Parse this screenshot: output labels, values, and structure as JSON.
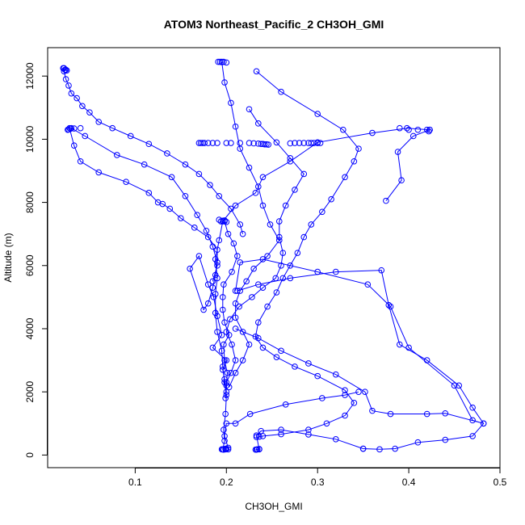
{
  "chart_data": {
    "type": "line",
    "title": "ATOM3 Northeast_Pacific_2 CH3OH_GMI",
    "xlabel": "CH3OH_GMI",
    "ylabel": "Altitude (m)",
    "xlim": [
      0.0,
      0.5
    ],
    "ylim": [
      0,
      12500
    ],
    "x_ticks": [
      0.1,
      0.2,
      0.3,
      0.4,
      0.5
    ],
    "x_tick_labels": [
      "0.1",
      "0.2",
      "0.3",
      "0.4",
      "0.5"
    ],
    "y_ticks": [
      0,
      2000,
      4000,
      6000,
      8000,
      10000,
      12000
    ],
    "y_tick_labels": [
      "0",
      "2000",
      "4000",
      "6000",
      "8000",
      "10000",
      "12000"
    ],
    "grid": false,
    "legend": "none",
    "series_color": "#0000ff",
    "marker": "open-circle",
    "series": [
      {
        "points": [
          [
            0.196,
            180
          ],
          [
            0.198,
            450
          ],
          [
            0.197,
            800
          ],
          [
            0.199,
            1300
          ],
          [
            0.2,
            1900
          ],
          [
            0.198,
            2300
          ],
          [
            0.196,
            2800
          ],
          [
            0.195,
            3300
          ],
          [
            0.19,
            3900
          ],
          [
            0.188,
            4500
          ],
          [
            0.188,
            5100
          ],
          [
            0.19,
            5600
          ],
          [
            0.188,
            6200
          ],
          [
            0.192,
            6800
          ],
          [
            0.196,
            7400
          ],
          [
            0.21,
            7900
          ],
          [
            0.232,
            8300
          ],
          [
            0.24,
            8800
          ],
          [
            0.27,
            9300
          ],
          [
            0.3,
            9900
          ],
          [
            0.36,
            10200
          ],
          [
            0.398,
            10350
          ],
          [
            0.423,
            10300
          ]
        ]
      },
      {
        "points": [
          [
            0.423,
            10300
          ],
          [
            0.405,
            10100
          ],
          [
            0.388,
            9600
          ],
          [
            0.392,
            8700
          ],
          [
            0.375,
            8050
          ]
        ]
      },
      {
        "points": [
          [
            0.199,
            1800
          ],
          [
            0.2,
            2200
          ],
          [
            0.201,
            2600
          ],
          [
            0.198,
            3000
          ],
          [
            0.197,
            3500
          ],
          [
            0.203,
            3800
          ],
          [
            0.198,
            4200
          ],
          [
            0.196,
            4600
          ],
          [
            0.196,
            5000
          ],
          [
            0.197,
            5400
          ],
          [
            0.206,
            5800
          ],
          [
            0.212,
            6300
          ],
          [
            0.208,
            6700
          ],
          [
            0.202,
            7000
          ],
          [
            0.198,
            7400
          ]
        ]
      },
      {
        "points": [
          [
            0.021,
            12250
          ],
          [
            0.022,
            12150
          ],
          [
            0.024,
            11900
          ],
          [
            0.027,
            11700
          ],
          [
            0.03,
            11450
          ],
          [
            0.036,
            11300
          ],
          [
            0.042,
            11050
          ],
          [
            0.05,
            10850
          ],
          [
            0.06,
            10550
          ],
          [
            0.075,
            10350
          ],
          [
            0.095,
            10100
          ],
          [
            0.115,
            9850
          ],
          [
            0.135,
            9550
          ],
          [
            0.155,
            9200
          ],
          [
            0.17,
            8900
          ],
          [
            0.182,
            8550
          ],
          [
            0.192,
            8200
          ],
          [
            0.205,
            7800
          ],
          [
            0.215,
            7300
          ],
          [
            0.218,
            7000
          ]
        ]
      },
      {
        "points": [
          [
            0.028,
            10350
          ],
          [
            0.033,
            9800
          ],
          [
            0.04,
            9300
          ],
          [
            0.06,
            8950
          ],
          [
            0.09,
            8650
          ],
          [
            0.115,
            8300
          ],
          [
            0.125,
            8000
          ],
          [
            0.13,
            7950
          ],
          [
            0.138,
            7800
          ],
          [
            0.15,
            7500
          ],
          [
            0.165,
            7200
          ],
          [
            0.18,
            6900
          ],
          [
            0.19,
            6500
          ],
          [
            0.19,
            6000
          ],
          [
            0.185,
            5500
          ]
        ]
      },
      {
        "points": [
          [
            0.03,
            10350
          ],
          [
            0.045,
            10100
          ],
          [
            0.08,
            9500
          ],
          [
            0.11,
            9200
          ],
          [
            0.14,
            8800
          ],
          [
            0.155,
            8200
          ],
          [
            0.168,
            7600
          ],
          [
            0.178,
            7100
          ],
          [
            0.185,
            6600
          ],
          [
            0.19,
            6100
          ],
          [
            0.188,
            5700
          ],
          [
            0.185,
            5300
          ],
          [
            0.18,
            4800
          ],
          [
            0.175,
            4600
          ],
          [
            0.16,
            5900
          ],
          [
            0.17,
            6300
          ],
          [
            0.18,
            5400
          ],
          [
            0.186,
            5000
          ],
          [
            0.19,
            4400
          ],
          [
            0.195,
            3800
          ],
          [
            0.185,
            3400
          ],
          [
            0.2,
            3000
          ],
          [
            0.196,
            2700
          ],
          [
            0.198,
            2400
          ],
          [
            0.2,
            2000
          ]
        ]
      },
      {
        "points": [
          [
            0.195,
            12450
          ],
          [
            0.198,
            11800
          ],
          [
            0.205,
            11150
          ],
          [
            0.21,
            10400
          ],
          [
            0.215,
            9700
          ],
          [
            0.225,
            9100
          ],
          [
            0.235,
            8500
          ],
          [
            0.24,
            7900
          ],
          [
            0.248,
            7300
          ],
          [
            0.258,
            6800
          ],
          [
            0.245,
            6300
          ],
          [
            0.23,
            5900
          ],
          [
            0.222,
            5500
          ],
          [
            0.215,
            5200
          ],
          [
            0.21,
            4800
          ],
          [
            0.21,
            4350
          ],
          [
            0.218,
            3900
          ],
          [
            0.225,
            3500
          ],
          [
            0.218,
            3000
          ],
          [
            0.21,
            2600
          ],
          [
            0.203,
            2150
          ]
        ]
      },
      {
        "points": [
          [
            0.233,
            12150
          ],
          [
            0.26,
            11500
          ],
          [
            0.3,
            10800
          ],
          [
            0.328,
            10300
          ],
          [
            0.345,
            9700
          ],
          [
            0.34,
            9300
          ],
          [
            0.33,
            8800
          ],
          [
            0.315,
            8100
          ],
          [
            0.305,
            7700
          ],
          [
            0.293,
            7300
          ],
          [
            0.285,
            6900
          ],
          [
            0.278,
            6400
          ],
          [
            0.27,
            6000
          ],
          [
            0.262,
            5600
          ],
          [
            0.255,
            5150
          ],
          [
            0.245,
            4700
          ],
          [
            0.235,
            4200
          ],
          [
            0.232,
            3750
          ],
          [
            0.24,
            3400
          ],
          [
            0.255,
            3100
          ],
          [
            0.275,
            2800
          ],
          [
            0.3,
            2500
          ],
          [
            0.33,
            2050
          ],
          [
            0.34,
            1650
          ],
          [
            0.33,
            1250
          ],
          [
            0.31,
            1000
          ],
          [
            0.29,
            800
          ],
          [
            0.26,
            660
          ],
          [
            0.24,
            600
          ],
          [
            0.236,
            580
          ],
          [
            0.233,
            570
          ]
        ]
      },
      {
        "points": [
          [
            0.225,
            10950
          ],
          [
            0.235,
            10500
          ],
          [
            0.255,
            9900
          ],
          [
            0.27,
            9400
          ],
          [
            0.285,
            8900
          ],
          [
            0.275,
            8400
          ],
          [
            0.265,
            7900
          ],
          [
            0.258,
            7400
          ],
          [
            0.258,
            6900
          ],
          [
            0.262,
            6400
          ],
          [
            0.26,
            6000
          ],
          [
            0.254,
            5600
          ],
          [
            0.24,
            5300
          ],
          [
            0.228,
            5000
          ],
          [
            0.214,
            4700
          ],
          [
            0.204,
            4300
          ],
          [
            0.2,
            3900
          ],
          [
            0.206,
            3500
          ],
          [
            0.21,
            3000
          ],
          [
            0.205,
            2600
          ],
          [
            0.2,
            2300
          ]
        ]
      },
      {
        "points": [
          [
            0.21,
            4000
          ],
          [
            0.235,
            3700
          ],
          [
            0.26,
            3300
          ],
          [
            0.29,
            2900
          ],
          [
            0.32,
            2550
          ],
          [
            0.352,
            2000
          ],
          [
            0.36,
            1400
          ],
          [
            0.38,
            1300
          ],
          [
            0.42,
            1300
          ],
          [
            0.44,
            1320
          ],
          [
            0.482,
            1000
          ],
          [
            0.47,
            1100
          ],
          [
            0.45,
            2200
          ],
          [
            0.4,
            3400
          ],
          [
            0.38,
            4700
          ],
          [
            0.355,
            5400
          ],
          [
            0.3,
            5800
          ],
          [
            0.24,
            6200
          ],
          [
            0.215,
            6100
          ],
          [
            0.21,
            5200
          ]
        ]
      },
      {
        "points": [
          [
            0.212,
            5200
          ],
          [
            0.235,
            5400
          ],
          [
            0.27,
            5600
          ],
          [
            0.32,
            5800
          ],
          [
            0.37,
            5850
          ],
          [
            0.378,
            4750
          ],
          [
            0.39,
            3500
          ],
          [
            0.42,
            3000
          ],
          [
            0.455,
            2200
          ],
          [
            0.47,
            1500
          ],
          [
            0.482,
            1000
          ],
          [
            0.47,
            600
          ],
          [
            0.44,
            480
          ],
          [
            0.41,
            400
          ],
          [
            0.385,
            200
          ],
          [
            0.368,
            180
          ],
          [
            0.35,
            200
          ]
        ]
      },
      {
        "points": [
          [
            0.35,
            200
          ],
          [
            0.32,
            500
          ],
          [
            0.29,
            650
          ],
          [
            0.26,
            800
          ],
          [
            0.238,
            760
          ],
          [
            0.233,
            620
          ],
          [
            0.236,
            180
          ],
          [
            0.232,
            170
          ]
        ]
      },
      {
        "points": [
          [
            0.199,
            200
          ],
          [
            0.202,
            230
          ],
          [
            0.198,
            600
          ],
          [
            0.2,
            1000
          ],
          [
            0.21,
            1000
          ],
          [
            0.226,
            1300
          ],
          [
            0.265,
            1600
          ],
          [
            0.305,
            1800
          ],
          [
            0.33,
            1900
          ],
          [
            0.345,
            2000
          ]
        ]
      }
    ],
    "clusters": [
      {
        "points": [
          [
            0.17,
            9880
          ],
          [
            0.172,
            9880
          ],
          [
            0.174,
            9880
          ],
          [
            0.176,
            9880
          ],
          [
            0.18,
            9880
          ],
          [
            0.185,
            9880
          ],
          [
            0.19,
            9880
          ],
          [
            0.2,
            9880
          ],
          [
            0.205,
            9880
          ],
          [
            0.215,
            9880
          ],
          [
            0.225,
            9880
          ],
          [
            0.23,
            9870
          ],
          [
            0.235,
            9860
          ],
          [
            0.238,
            9850
          ],
          [
            0.24,
            9850
          ],
          [
            0.242,
            9840
          ],
          [
            0.244,
            9840
          ],
          [
            0.246,
            9830
          ],
          [
            0.27,
            9870
          ],
          [
            0.275,
            9880
          ],
          [
            0.28,
            9880
          ],
          [
            0.285,
            9880
          ],
          [
            0.29,
            9880
          ],
          [
            0.293,
            9880
          ],
          [
            0.296,
            9880
          ],
          [
            0.3,
            9880
          ],
          [
            0.303,
            9880
          ]
        ]
      },
      {
        "points": [
          [
            0.191,
            12450
          ],
          [
            0.193,
            12450
          ],
          [
            0.195,
            12440
          ],
          [
            0.197,
            12450
          ],
          [
            0.2,
            12430
          ]
        ]
      },
      {
        "points": [
          [
            0.022,
            12250
          ],
          [
            0.023,
            12200
          ],
          [
            0.024,
            12200
          ],
          [
            0.025,
            12180
          ]
        ]
      },
      {
        "points": [
          [
            0.026,
            10300
          ],
          [
            0.027,
            10310
          ],
          [
            0.029,
            10330
          ],
          [
            0.033,
            10340
          ],
          [
            0.04,
            10350
          ]
        ]
      },
      {
        "points": [
          [
            0.39,
            10350
          ],
          [
            0.4,
            10300
          ],
          [
            0.41,
            10300
          ],
          [
            0.42,
            10300
          ],
          [
            0.422,
            10250
          ]
        ]
      },
      {
        "points": [
          [
            0.192,
            7450
          ],
          [
            0.194,
            7400
          ],
          [
            0.196,
            7420
          ],
          [
            0.198,
            7430
          ],
          [
            0.2,
            7380
          ]
        ]
      },
      {
        "points": [
          [
            0.195,
            180
          ],
          [
            0.197,
            170
          ],
          [
            0.199,
            180
          ],
          [
            0.2,
            190
          ],
          [
            0.202,
            180
          ],
          [
            0.233,
            170
          ],
          [
            0.234,
            180
          ],
          [
            0.236,
            190
          ]
        ]
      }
    ]
  }
}
